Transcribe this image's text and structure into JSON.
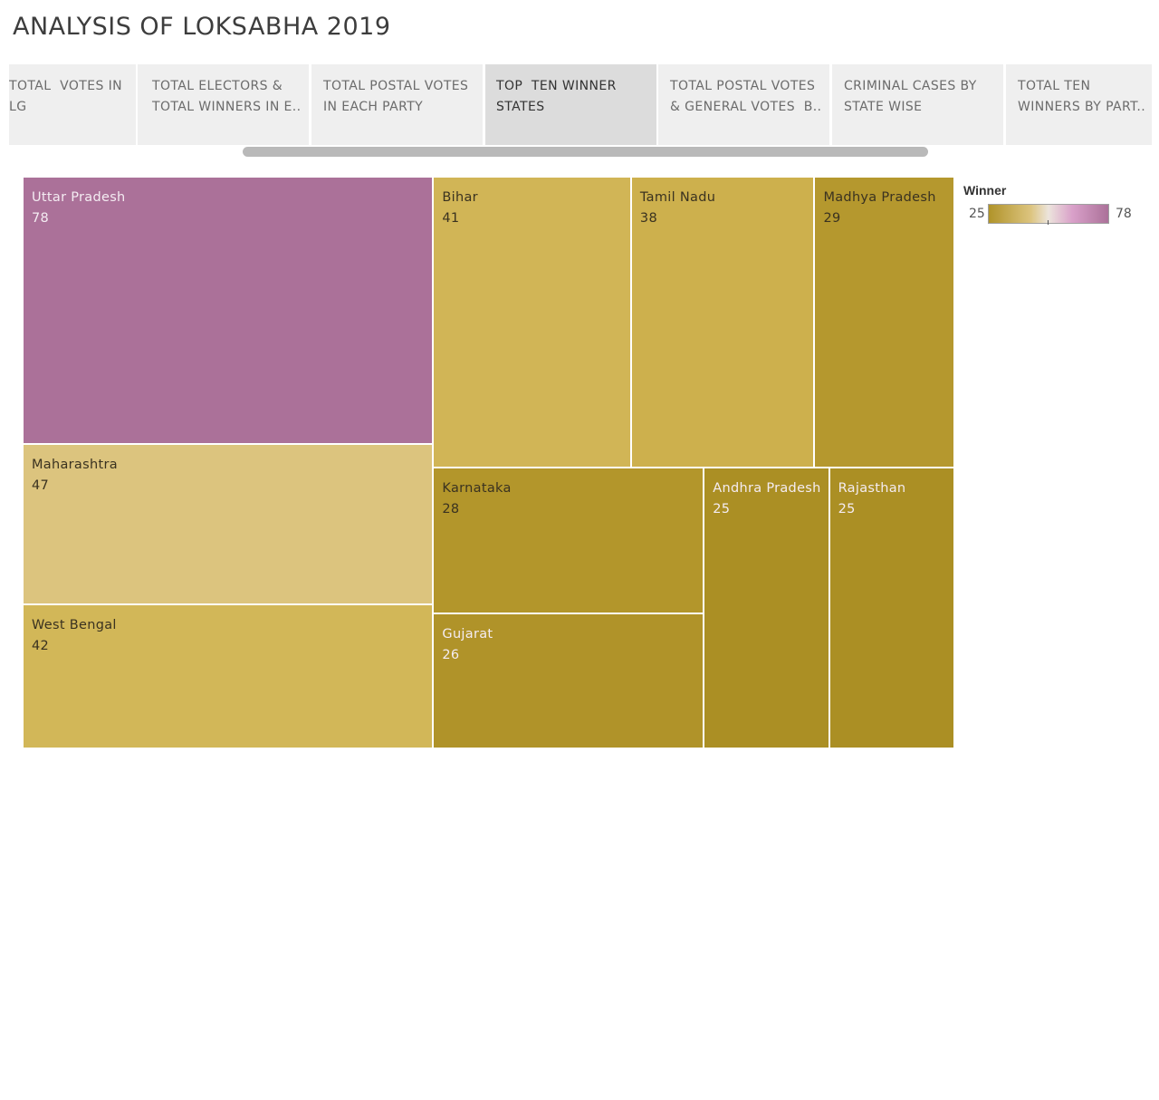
{
  "title": "ANALYSIS OF LOKSABHA 2019",
  "tabs": [
    {
      "line1": "TOTAL  VOTES IN",
      "line2": "LG",
      "active": false
    },
    {
      "line1": "TOTAL ELECTORS &",
      "line2": "TOTAL WINNERS IN E..",
      "active": false
    },
    {
      "line1": "TOTAL POSTAL VOTES",
      "line2": "IN EACH PARTY",
      "active": false
    },
    {
      "line1": "TOP  TEN WINNER",
      "line2": "STATES",
      "active": true
    },
    {
      "line1": "TOTAL POSTAL VOTES",
      "line2": "& GENERAL VOTES  B..",
      "active": false
    },
    {
      "line1": "CRIMINAL CASES BY",
      "line2": "STATE WISE",
      "active": false
    },
    {
      "line1": "TOTAL TEN",
      "line2": "WINNERS BY PART..",
      "active": false
    }
  ],
  "legend": {
    "title": "Winner",
    "min": "25",
    "max": "78",
    "colors": {
      "low": "#b0932a",
      "mid_low": "#dcc47e",
      "mid": "#ece4dc",
      "mid_high": "#d9a0c9",
      "high": "#ab7199"
    }
  },
  "chart_data": {
    "type": "treemap",
    "measure": "Winner",
    "items": [
      {
        "state": "Uttar Pradesh",
        "value": 78,
        "color": "#ab7199"
      },
      {
        "state": "Maharashtra",
        "value": 47,
        "color": "#dcc47e"
      },
      {
        "state": "West Bengal",
        "value": 42,
        "color": "#d2b758"
      },
      {
        "state": "Bihar",
        "value": 41,
        "color": "#d1b556"
      },
      {
        "state": "Tamil Nadu",
        "value": 38,
        "color": "#cdb04d"
      },
      {
        "state": "Madhya Pradesh",
        "value": 29,
        "color": "#b5982e"
      },
      {
        "state": "Karnataka",
        "value": 28,
        "color": "#b3962b"
      },
      {
        "state": "Gujarat",
        "value": 26,
        "color": "#b09329"
      },
      {
        "state": "Andhra Pradesh",
        "value": 25,
        "color": "#ab8f24"
      },
      {
        "state": "Rajasthan",
        "value": 25,
        "color": "#ab8f24"
      }
    ],
    "label_colors": {
      "Uttar Pradesh": "light",
      "Gujarat": "light",
      "Andhra Pradesh": "light",
      "Rajasthan": "light"
    }
  }
}
